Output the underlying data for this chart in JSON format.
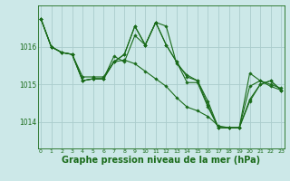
{
  "background_color": "#cce8e8",
  "grid_color": "#aacccc",
  "line_color": "#1a6b1a",
  "marker_color": "#1a6b1a",
  "xlabel": "Graphe pression niveau de la mer (hPa)",
  "xlabel_fontsize": 7,
  "ylabel_ticks": [
    1014,
    1015,
    1016
  ],
  "xticks": [
    0,
    1,
    2,
    3,
    4,
    5,
    6,
    7,
    8,
    9,
    10,
    11,
    12,
    13,
    14,
    15,
    16,
    17,
    18,
    19,
    20,
    21,
    22,
    23
  ],
  "ylim": [
    1013.3,
    1017.1
  ],
  "xlim": [
    -0.3,
    23.3
  ],
  "series": [
    [
      1016.75,
      1016.0,
      1015.85,
      1015.8,
      1015.1,
      1015.15,
      1015.15,
      1015.6,
      1015.8,
      1016.55,
      1016.05,
      1016.65,
      1016.05,
      1015.6,
      1015.05,
      1015.05,
      1014.4,
      1013.85,
      1013.85,
      1013.85,
      1014.95,
      1015.1,
      1015.0,
      1014.9
    ],
    [
      1016.75,
      1016.0,
      1015.85,
      1015.8,
      1015.1,
      1015.15,
      1015.15,
      1015.75,
      1015.6,
      1016.3,
      1016.05,
      1016.65,
      1016.55,
      1015.55,
      1015.25,
      1015.1,
      1014.55,
      1013.85,
      1013.85,
      1013.85,
      1015.3,
      1015.1,
      1014.95,
      1014.85
    ],
    [
      1016.75,
      1016.0,
      1015.85,
      1015.8,
      1015.2,
      1015.2,
      1015.2,
      1015.6,
      1015.8,
      1016.55,
      1016.05,
      1016.65,
      1016.05,
      1015.6,
      1015.2,
      1015.1,
      1014.45,
      1013.85,
      1013.85,
      1013.85,
      1014.6,
      1015.0,
      1015.1,
      1014.85
    ],
    [
      1016.75,
      1016.0,
      1015.85,
      1015.8,
      1015.1,
      1015.15,
      1015.15,
      1015.6,
      1015.65,
      1015.55,
      1015.35,
      1015.15,
      1014.95,
      1014.65,
      1014.4,
      1014.3,
      1014.15,
      1013.9,
      1013.85,
      1013.85,
      1014.55,
      1015.0,
      1015.1,
      1014.85
    ]
  ]
}
